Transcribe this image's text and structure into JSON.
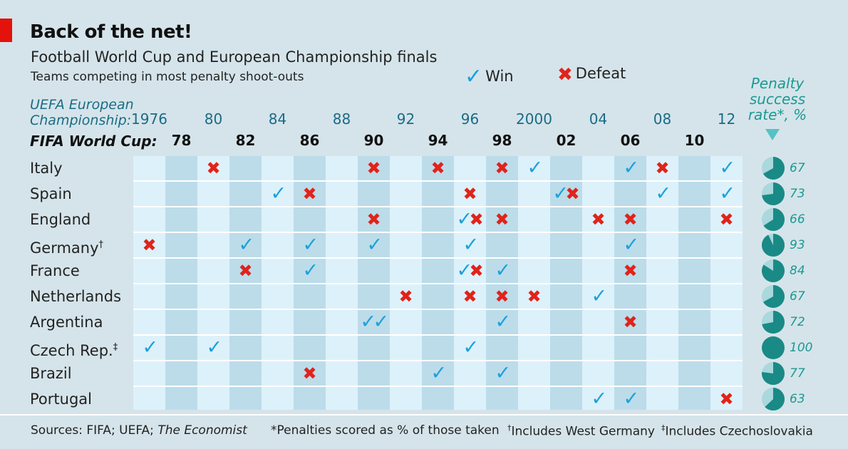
{
  "header": {
    "title": "Back of the net!",
    "subtitle": "Football World Cup and European Championship finals",
    "subsubtitle": "Teams competing in most penalty shoot-outs"
  },
  "legend": {
    "win": "Win",
    "defeat": "Defeat",
    "win_icon": "check-icon",
    "defeat_icon": "cross-icon"
  },
  "axis": {
    "uefa_label_1": "UEFA European",
    "uefa_label_2": "Championship:",
    "fifa_label": "FIFA World Cup:"
  },
  "penalty_header": {
    "line1": "Penalty",
    "line2": "success",
    "line3": "rate*, %"
  },
  "colors": {
    "win": "#1aa1dc",
    "defeat": "#e1231b",
    "pie": "#1a8a86",
    "pie_bg": "#a9d8dd",
    "band_dark": "#bcdcea",
    "band_light": "#ddf1fa"
  },
  "chart_data": {
    "type": "table",
    "title": "Back of the net!",
    "subtitle": "Football World Cup and European Championship finals",
    "uefa_years": [
      "1976",
      "80",
      "84",
      "88",
      "92",
      "96",
      "2000",
      "04",
      "08",
      "12"
    ],
    "fifa_years": [
      "78",
      "82",
      "86",
      "90",
      "94",
      "98",
      "02",
      "06",
      "10"
    ],
    "columns": [
      "1976",
      "78",
      "80",
      "82",
      "84",
      "86",
      "88",
      "90",
      "92",
      "94",
      "96",
      "98",
      "2000",
      "02",
      "04",
      "06",
      "08",
      "10",
      "12"
    ],
    "teams": [
      {
        "name": "Italy",
        "sup": "",
        "rate": 67,
        "results": {
          "80": "L",
          "90": "L",
          "94": "L",
          "98": "L",
          "2000": "W",
          "06": "W",
          "08": "L",
          "12": "W"
        }
      },
      {
        "name": "Spain",
        "sup": "",
        "rate": 73,
        "results": {
          "84": "W",
          "86": "L",
          "96": "L",
          "02": "WL",
          "08": "W",
          "12": "W"
        }
      },
      {
        "name": "England",
        "sup": "",
        "rate": 66,
        "results": {
          "90": "L",
          "96": "WL",
          "98": "L",
          "04": "L",
          "06": "L",
          "12": "L"
        }
      },
      {
        "name": "Germany",
        "sup": "†",
        "rate": 93,
        "results": {
          "1976": "L",
          "82": "W",
          "86": "W",
          "90": "W",
          "96": "W",
          "06": "W"
        }
      },
      {
        "name": "France",
        "sup": "",
        "rate": 84,
        "results": {
          "82": "L",
          "86": "W",
          "96": "WL",
          "98": "W",
          "06": "L"
        }
      },
      {
        "name": "Netherlands",
        "sup": "",
        "rate": 67,
        "results": {
          "92": "L",
          "96": "L",
          "98": "L",
          "2000": "L",
          "04": "W"
        }
      },
      {
        "name": "Argentina",
        "sup": "",
        "rate": 72,
        "results": {
          "90": "WW",
          "98": "W",
          "06": "L"
        }
      },
      {
        "name": "Czech Rep.",
        "sup": "‡",
        "rate": 100,
        "results": {
          "1976": "W",
          "80": "W",
          "96": "W"
        }
      },
      {
        "name": "Brazil",
        "sup": "",
        "rate": 77,
        "results": {
          "86": "L",
          "94": "W",
          "98": "W"
        }
      },
      {
        "name": "Portugal",
        "sup": "",
        "rate": 63,
        "results": {
          "04": "W",
          "06": "W",
          "12": "L"
        }
      }
    ]
  },
  "footer": {
    "sources_prefix": "Sources: FIFA; UEFA; ",
    "sources_italic": "The Economist",
    "note1": "*Penalties scored as % of those taken",
    "note2_sup": "†",
    "note2": "Includes West Germany",
    "note3_sup": "‡",
    "note3": "Includes Czechoslovakia"
  }
}
